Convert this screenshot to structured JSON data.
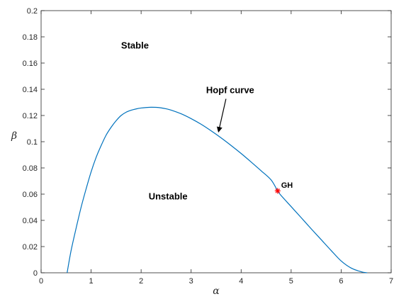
{
  "chart_data": {
    "type": "line",
    "xlabel": "α",
    "ylabel": "β",
    "xlim": [
      0,
      7
    ],
    "ylim": [
      0,
      0.2
    ],
    "xticks": [
      "0",
      "1",
      "2",
      "3",
      "4",
      "5",
      "6",
      "7"
    ],
    "yticks": [
      "0",
      "0.02",
      "0.04",
      "0.06",
      "0.08",
      "0.1",
      "0.12",
      "0.14",
      "0.16",
      "0.18",
      "0.2"
    ],
    "grid": false,
    "series": [
      {
        "color": "#0072BD",
        "x": [
          0.52,
          0.6,
          0.7,
          0.8,
          0.9,
          1.0,
          1.1,
          1.2,
          1.3,
          1.4,
          1.5,
          1.6,
          1.7,
          1.8,
          1.9,
          2.0,
          2.1,
          2.2,
          2.3,
          2.4,
          2.5,
          2.6,
          2.8,
          3.0,
          3.2,
          3.4,
          3.6,
          3.8,
          4.0,
          4.2,
          4.4,
          4.6,
          4.73,
          4.8,
          5.0,
          5.2,
          5.4,
          5.6,
          5.8,
          6.0,
          6.2,
          6.4,
          6.52
        ],
        "y": [
          0.0,
          0.017,
          0.034,
          0.05,
          0.064,
          0.077,
          0.088,
          0.097,
          0.105,
          0.111,
          0.116,
          0.12,
          0.1225,
          0.124,
          0.125,
          0.1257,
          0.1261,
          0.1263,
          0.1262,
          0.1258,
          0.1251,
          0.1241,
          0.1213,
          0.1176,
          0.1133,
          0.1083,
          0.1029,
          0.0971,
          0.091,
          0.0845,
          0.0778,
          0.0708,
          0.0625,
          0.0589,
          0.0505,
          0.0421,
          0.0336,
          0.0253,
          0.017,
          0.009,
          0.0036,
          0.0008,
          0.0
        ]
      }
    ],
    "annotations": [
      {
        "text": "Stable",
        "x": 1.6,
        "y": 0.171
      },
      {
        "text": "Unstable",
        "x": 2.15,
        "y": 0.056
      },
      {
        "text": "Hopf curve",
        "x": 3.3,
        "y": 0.137,
        "arrow_to": [
          3.55,
          0.108
        ]
      },
      {
        "text": "GH",
        "x": 4.8,
        "y": 0.065
      }
    ],
    "markers": [
      {
        "label": "GH",
        "x": 4.73,
        "y": 0.0625,
        "symbol": "*",
        "color": "#ff0000"
      }
    ]
  }
}
